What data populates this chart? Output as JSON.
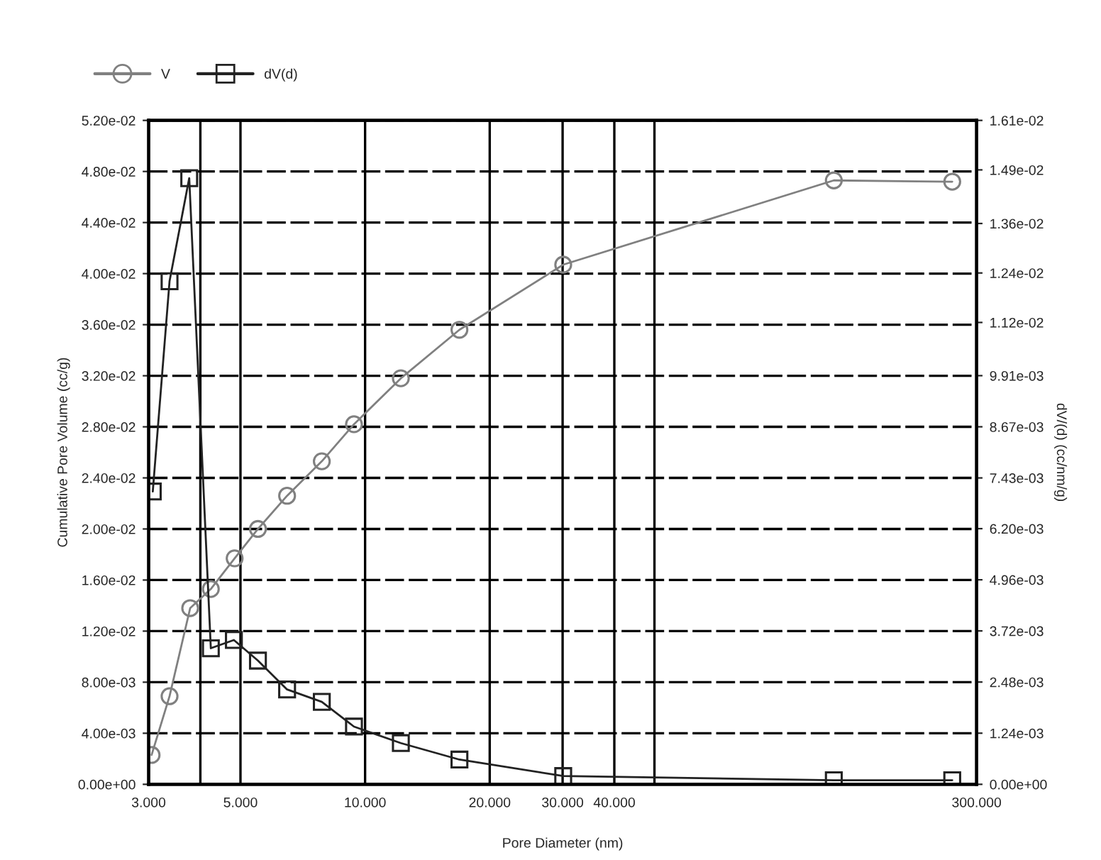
{
  "chart_data": {
    "type": "line",
    "xlabel": "Pore Diameter (nm)",
    "ylabel": "Cumulative Pore Volume (cc/g)",
    "y2label": "dV/(d) (cc/nm/g)",
    "log": "x",
    "grid": true,
    "legend": "top left",
    "xlim": [
      3,
      300
    ],
    "xticks": [
      {
        "value": 3,
        "label": "3.000"
      },
      {
        "value": 4,
        "label": null
      },
      {
        "value": 5,
        "label": "5.000"
      },
      {
        "value": 10,
        "label": "10.000"
      },
      {
        "value": 20,
        "label": "20.000"
      },
      {
        "value": 30,
        "label": "30.000"
      },
      {
        "value": 40,
        "label": "40.000"
      },
      {
        "value": 50,
        "label": null
      },
      {
        "value": 300,
        "label": "300.000"
      }
    ],
    "ylim": [
      0,
      0.052
    ],
    "yticks": [
      {
        "value": 0,
        "label": "0.00e+00"
      },
      {
        "value": 0.004,
        "label": "4.00e-03"
      },
      {
        "value": 0.008,
        "label": "8.00e-03"
      },
      {
        "value": 0.012,
        "label": "1.20e-02"
      },
      {
        "value": 0.016,
        "label": "1.60e-02"
      },
      {
        "value": 0.02,
        "label": "2.00e-02"
      },
      {
        "value": 0.024,
        "label": "2.40e-02"
      },
      {
        "value": 0.028,
        "label": "2.80e-02"
      },
      {
        "value": 0.032,
        "label": "3.20e-02"
      },
      {
        "value": 0.036,
        "label": "3.60e-02"
      },
      {
        "value": 0.04,
        "label": "4.00e-02"
      },
      {
        "value": 0.044,
        "label": "4.40e-02"
      },
      {
        "value": 0.048,
        "label": "4.80e-02"
      },
      {
        "value": 0.052,
        "label": "5.20e-02"
      }
    ],
    "y2lim": [
      0,
      0.0161
    ],
    "y2ticks": [
      {
        "value": 0,
        "label": "0.00e+00"
      },
      {
        "value": 0.00124,
        "label": "1.24e-03"
      },
      {
        "value": 0.00248,
        "label": "2.48e-03"
      },
      {
        "value": 0.00372,
        "label": "3.72e-03"
      },
      {
        "value": 0.00496,
        "label": "4.96e-03"
      },
      {
        "value": 0.0062,
        "label": "6.20e-03"
      },
      {
        "value": 0.00743,
        "label": "7.43e-03"
      },
      {
        "value": 0.00867,
        "label": "8.67e-03"
      },
      {
        "value": 0.00991,
        "label": "9.91e-03"
      },
      {
        "value": 0.0112,
        "label": "1.12e-02"
      },
      {
        "value": 0.0124,
        "label": "1.24e-02"
      },
      {
        "value": 0.0136,
        "label": "1.36e-02"
      },
      {
        "value": 0.0149,
        "label": "1.49e-02"
      },
      {
        "value": 0.0161,
        "label": "1.61e-02"
      }
    ],
    "x": [
      3.05,
      3.37,
      3.78,
      4.24,
      4.84,
      5.51,
      6.48,
      7.86,
      9.4,
      12.2,
      16.9,
      30.1,
      135.6,
      262
    ],
    "series": [
      {
        "name": "V",
        "color": "#808080",
        "marker": "circle",
        "values": [
          0.0023,
          0.0069,
          0.0138,
          0.0153,
          0.0177,
          0.02,
          0.0226,
          0.0253,
          0.0282,
          0.0318,
          0.0356,
          0.0407,
          0.0473,
          0.0472
        ]
      },
      {
        "name": "dV(d)",
        "color": "#222222",
        "marker": "square",
        "axis": "y2",
        "x": [
          3.07,
          3.37,
          3.76,
          4.24,
          4.82,
          5.51,
          6.48,
          7.86,
          9.4,
          12.2,
          16.9,
          30.1,
          135.6,
          262
        ],
        "values": [
          0.0071,
          0.0122,
          0.0147,
          0.0033,
          0.0035,
          0.003,
          0.0023,
          0.002,
          0.0014,
          0.001,
          0.0006,
          0.0002,
          0.0001,
          0.0001
        ]
      }
    ]
  }
}
